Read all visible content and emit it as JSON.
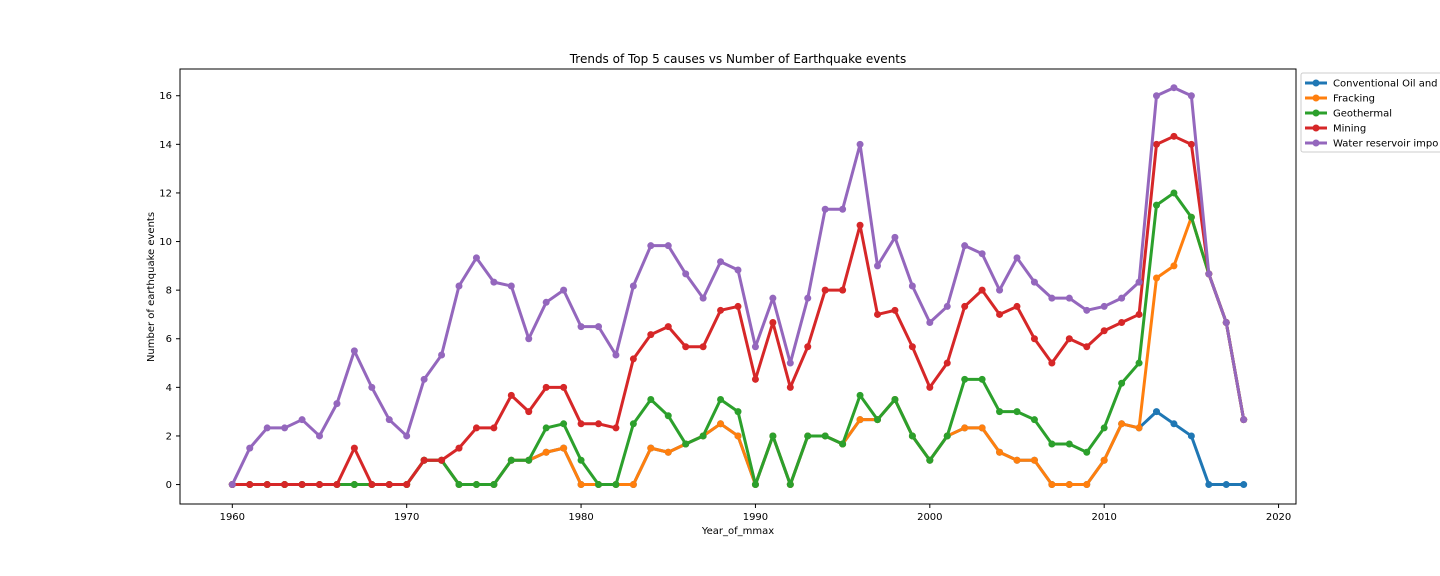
{
  "chart_data": {
    "type": "line",
    "title": "Trends of Top 5 causes vs Number of Earthquake events",
    "xlabel": "Year_of_mmax",
    "ylabel": "Number of earthquake events",
    "xlim": [
      1957,
      2021
    ],
    "ylim": [
      -0.8,
      17.1
    ],
    "xticks": [
      1960,
      1970,
      1980,
      1990,
      2000,
      2010,
      2020
    ],
    "yticks": [
      0,
      2,
      4,
      6,
      8,
      10,
      12,
      14,
      16
    ],
    "grid": false,
    "legend_position": "outside top-right",
    "x": [
      1960,
      1961,
      1962,
      1963,
      1964,
      1965,
      1966,
      1967,
      1968,
      1969,
      1970,
      1971,
      1972,
      1973,
      1974,
      1975,
      1976,
      1977,
      1978,
      1979,
      1980,
      1981,
      1982,
      1983,
      1984,
      1985,
      1986,
      1987,
      1988,
      1989,
      1990,
      1991,
      1992,
      1993,
      1994,
      1995,
      1996,
      1997,
      1998,
      1999,
      2000,
      2001,
      2002,
      2003,
      2004,
      2005,
      2006,
      2007,
      2008,
      2009,
      2010,
      2011,
      2012,
      2013,
      2014,
      2015,
      2016,
      2017,
      2018
    ],
    "series": [
      {
        "name": "Conventional Oil and",
        "color": "#1f77b4",
        "values": [
          0,
          0,
          0,
          0,
          0,
          0,
          0,
          0,
          0,
          0,
          0,
          1,
          1,
          0,
          0,
          0,
          1,
          1,
          1.33,
          1.5,
          0,
          0,
          0,
          0,
          1.5,
          1.33,
          1.67,
          2,
          2.5,
          2,
          0,
          2,
          0,
          2,
          2,
          1.67,
          2.67,
          2.67,
          3.5,
          2,
          1,
          2,
          2.33,
          2.33,
          1.33,
          1,
          1,
          0,
          0,
          0,
          1,
          2.5,
          2.33,
          3,
          2.5,
          2,
          0,
          0,
          0
        ]
      },
      {
        "name": "Fracking",
        "color": "#ff7f0e",
        "values": [
          0,
          0,
          0,
          0,
          0,
          0,
          0,
          0,
          0,
          0,
          0,
          1,
          1,
          0,
          0,
          0,
          1,
          1,
          1.33,
          1.5,
          0,
          0,
          0,
          0,
          1.5,
          1.33,
          1.67,
          2,
          2.5,
          2,
          0,
          2,
          0,
          2,
          2,
          1.67,
          2.67,
          2.67,
          3.5,
          2,
          1,
          2,
          2.33,
          2.33,
          1.33,
          1,
          1,
          0,
          0,
          0,
          1,
          2.5,
          2.33,
          8.5,
          9,
          11,
          8.67,
          6.67,
          2.67
        ]
      },
      {
        "name": "Geothermal",
        "color": "#2ca02c",
        "values": [
          0,
          0,
          0,
          0,
          0,
          0,
          0,
          0,
          0,
          0,
          0,
          1,
          1,
          0,
          0,
          0,
          1,
          1,
          2.33,
          2.5,
          1,
          0,
          0,
          2.5,
          3.5,
          2.83,
          1.67,
          2,
          3.5,
          3,
          0,
          2,
          0,
          2,
          2,
          1.67,
          3.67,
          2.67,
          3.5,
          2,
          1,
          2,
          4.33,
          4.33,
          3,
          3,
          2.67,
          1.67,
          1.67,
          1.33,
          2.33,
          4.17,
          5,
          11.5,
          12,
          11,
          8.67,
          6.67,
          2.67
        ]
      },
      {
        "name": "Mining",
        "color": "#d62728",
        "values": [
          0,
          0,
          0,
          0,
          0,
          0,
          0,
          1.5,
          0,
          0,
          0,
          1,
          1,
          1.5,
          2.33,
          2.33,
          3.67,
          3,
          4,
          4,
          2.5,
          2.5,
          2.33,
          5.17,
          6.17,
          6.5,
          5.67,
          5.67,
          7.17,
          7.33,
          4.33,
          6.67,
          4,
          5.67,
          8,
          8,
          10.67,
          7,
          7.17,
          5.67,
          4,
          5,
          7.33,
          8,
          7,
          7.33,
          6,
          5,
          6,
          5.67,
          6.33,
          6.67,
          7,
          14,
          14.33,
          14,
          8.67,
          6.67,
          2.67
        ]
      },
      {
        "name": "Water reservoir impo",
        "color": "#9467bd",
        "values": [
          0,
          1.5,
          2.33,
          2.33,
          2.67,
          2,
          3.33,
          5.5,
          4,
          2.67,
          2,
          4.33,
          5.33,
          8.17,
          9.33,
          8.33,
          8.17,
          6,
          7.5,
          8,
          6.5,
          6.5,
          5.33,
          8.17,
          9.83,
          9.83,
          8.67,
          7.67,
          9.17,
          8.83,
          5.67,
          7.67,
          5,
          7.67,
          11.33,
          11.33,
          14,
          9,
          10.17,
          8.17,
          6.67,
          7.33,
          9.83,
          9.5,
          8,
          9.33,
          8.33,
          7.67,
          7.67,
          7.17,
          7.33,
          7.67,
          8.33,
          16,
          16.33,
          16,
          8.67,
          6.67,
          2.67
        ]
      }
    ]
  }
}
